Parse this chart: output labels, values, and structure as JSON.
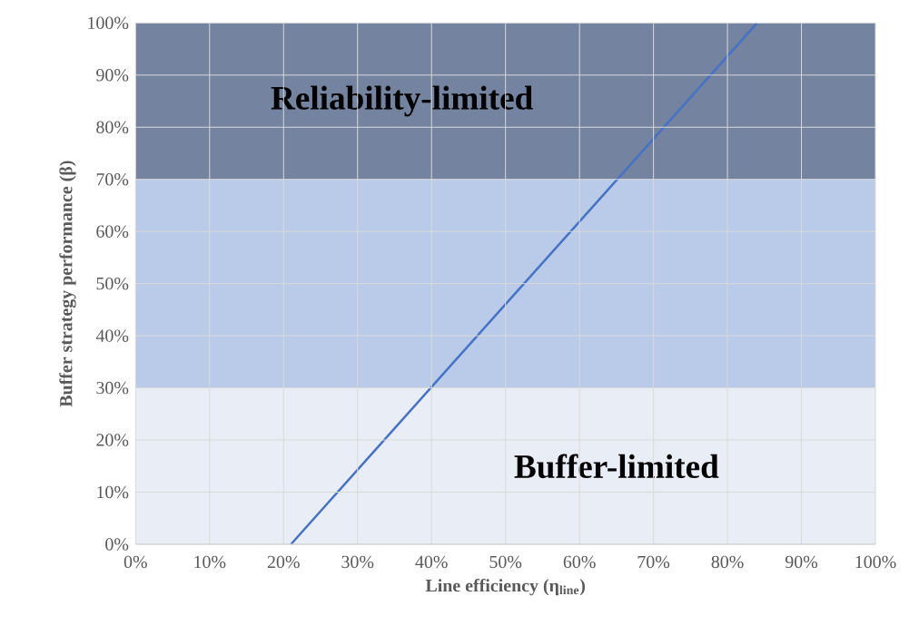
{
  "chart_data": {
    "type": "line",
    "xlabel": "Line efficiency (η$_{line}$)",
    "ylabel": "Buffer strategy performance  (β)",
    "series": [
      {
        "x": [
          21,
          84
        ],
        "values": [
          0,
          100
        ],
        "color": "#4472c4"
      }
    ],
    "xlim": [
      0,
      100
    ],
    "ylim": [
      0,
      100
    ],
    "xticks": [
      {
        "value": 0,
        "label": "0%"
      },
      {
        "value": 10,
        "label": "10%"
      },
      {
        "value": 20,
        "label": "20%"
      },
      {
        "value": 30,
        "label": "30%"
      },
      {
        "value": 40,
        "label": "40%"
      },
      {
        "value": 50,
        "label": "50%"
      },
      {
        "value": 60,
        "label": "60%"
      },
      {
        "value": 70,
        "label": "70%"
      },
      {
        "value": 80,
        "label": "80%"
      },
      {
        "value": 90,
        "label": "90%"
      },
      {
        "value": 100,
        "label": "100%"
      }
    ],
    "yticks": [
      {
        "value": 0,
        "label": "0%"
      },
      {
        "value": 10,
        "label": "10%"
      },
      {
        "value": 20,
        "label": "20%"
      },
      {
        "value": 30,
        "label": "30%"
      },
      {
        "value": 40,
        "label": "40%"
      },
      {
        "value": 50,
        "label": "50%"
      },
      {
        "value": 60,
        "label": "60%"
      },
      {
        "value": 70,
        "label": "70%"
      },
      {
        "value": 80,
        "label": "80%"
      },
      {
        "value": 90,
        "label": "90%"
      },
      {
        "value": 100,
        "label": "100%"
      }
    ],
    "bands": [
      {
        "axis": "y",
        "from": 0,
        "to": 30,
        "label": "Buffer-limited",
        "color": "#e9edf6"
      },
      {
        "axis": "y",
        "from": 30,
        "to": 70,
        "color": "#b9cbe9"
      },
      {
        "axis": "y",
        "from": 70,
        "to": 100,
        "label": "Reliability-limited",
        "color": "#74839f"
      }
    ],
    "grid": true,
    "marker": "none",
    "line_style": "solid"
  }
}
